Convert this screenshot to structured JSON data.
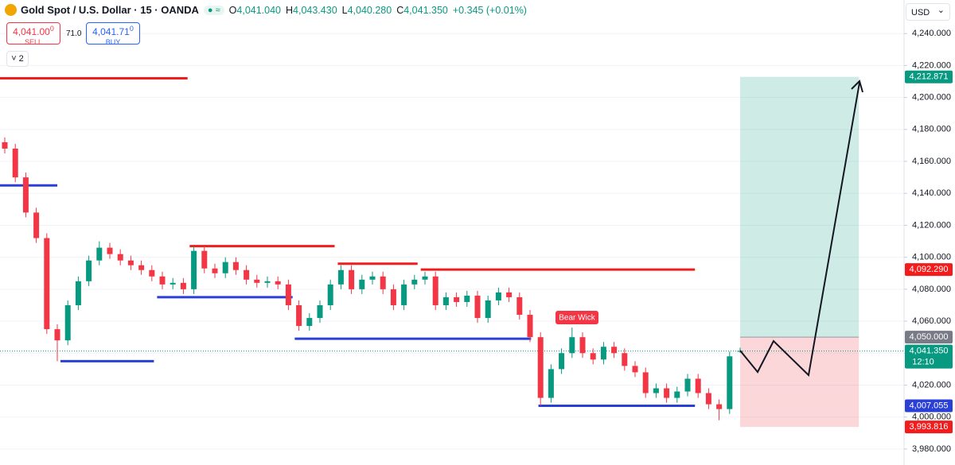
{
  "header": {
    "symbol": "Gold Spot / U.S. Dollar · 15 · OANDA",
    "ohlc": [
      {
        "label": "O",
        "value": "4,041.040"
      },
      {
        "label": "H",
        "value": "4,043.430"
      },
      {
        "label": "L",
        "value": "4,040.280"
      },
      {
        "label": "C",
        "value": "4,041.350"
      }
    ],
    "change": "+0.345 (+0.01%)",
    "sell": {
      "price": "4,041.00",
      "sup": "0",
      "label": "SELL"
    },
    "spread": "71.0",
    "buy": {
      "price": "4,041.71",
      "sup": "0",
      "label": "BUY"
    },
    "indicators": "2",
    "currency": "USD"
  },
  "chart_data": {
    "type": "candlestick",
    "up_color": "#089981",
    "down_color": "#f23645",
    "grid": true,
    "ylim": [
      3970,
      4261
    ],
    "yticks": [
      {
        "value": 4240,
        "label": "4,240.000"
      },
      {
        "value": 4220,
        "label": "4,220.000"
      },
      {
        "value": 4200,
        "label": "4,200.000"
      },
      {
        "value": 4180,
        "label": "4,180.000"
      },
      {
        "value": 4160,
        "label": "4,160.000"
      },
      {
        "value": 4140,
        "label": "4,140.000"
      },
      {
        "value": 4120,
        "label": "4,120.000"
      },
      {
        "value": 4100,
        "label": "4,100.000"
      },
      {
        "value": 4080,
        "label": "4,080.000"
      },
      {
        "value": 4060,
        "label": "4,060.000"
      },
      {
        "value": 4040,
        "label": "4,040.000"
      },
      {
        "value": 4020,
        "label": "4,020.000"
      },
      {
        "value": 4000,
        "label": "4,000.000"
      },
      {
        "value": 3980,
        "label": "3,980.000"
      }
    ],
    "open": [
      4172,
      4168,
      4150,
      4128,
      4112,
      4055,
      4048,
      4070,
      4085,
      4098,
      4106,
      4102,
      4098,
      4095,
      4092,
      4088,
      4083,
      4084,
      4080,
      4104,
      4093,
      4090,
      4097,
      4092,
      4086,
      4084,
      4085,
      4083,
      4070,
      4057,
      4062,
      4070,
      4083,
      4092,
      4080,
      4086,
      4088,
      4080,
      4070,
      4083,
      4086,
      4088,
      4070,
      4075,
      4072,
      4076,
      4062,
      4073,
      4078,
      4075,
      4064,
      4050,
      4012,
      4030,
      4040,
      4050,
      4040,
      4036,
      4044,
      4040,
      4032,
      4028,
      4015,
      4018,
      4012,
      4016,
      4024,
      4015,
      4008,
      4005,
      4041.04
    ],
    "high": [
      4175,
      4171,
      4153,
      4131,
      4115,
      4058,
      4073,
      4088,
      4101,
      4110,
      4109,
      4105,
      4101,
      4098,
      4095,
      4091,
      4087,
      4087,
      4107,
      4107,
      4096,
      4100,
      4100,
      4095,
      4089,
      4088,
      4088,
      4086,
      4073,
      4065,
      4073,
      4086,
      4095,
      4095,
      4089,
      4091,
      4091,
      4083,
      4086,
      4089,
      4091,
      4091,
      4078,
      4078,
      4079,
      4079,
      4076,
      4081,
      4081,
      4078,
      4067,
      4053,
      4033,
      4043,
      4056,
      4053,
      4043,
      4047,
      4047,
      4043,
      4035,
      4031,
      4021,
      4021,
      4019,
      4027,
      4027,
      4018,
      4011,
      4041,
      4043.43
    ],
    "low": [
      4165,
      4147,
      4125,
      4109,
      4052,
      4035,
      4045,
      4067,
      4082,
      4095,
      4099,
      4095,
      4092,
      4089,
      4085,
      4080,
      4080,
      4077,
      4077,
      4090,
      4087,
      4087,
      4089,
      4083,
      4081,
      4081,
      4080,
      4067,
      4054,
      4054,
      4059,
      4067,
      4080,
      4077,
      4077,
      4083,
      4077,
      4067,
      4067,
      4080,
      4083,
      4067,
      4067,
      4069,
      4069,
      4059,
      4059,
      4070,
      4072,
      4061,
      4047,
      4007,
      4009,
      4027,
      4037,
      4037,
      4033,
      4033,
      4037,
      4029,
      4025,
      4012,
      4012,
      4009,
      4009,
      4013,
      4012,
      4005,
      3998,
      4002,
      4040.28
    ],
    "close": [
      4168,
      4150,
      4128,
      4112,
      4055,
      4048,
      4070,
      4085,
      4098,
      4106,
      4102,
      4098,
      4095,
      4092,
      4088,
      4083,
      4084,
      4080,
      4104,
      4093,
      4090,
      4097,
      4092,
      4086,
      4084,
      4085,
      4083,
      4070,
      4057,
      4062,
      4070,
      4083,
      4092,
      4080,
      4086,
      4088,
      4080,
      4070,
      4083,
      4086,
      4088,
      4070,
      4075,
      4072,
      4076,
      4062,
      4073,
      4078,
      4075,
      4064,
      4050,
      4012,
      4030,
      4040,
      4050,
      4040,
      4036,
      4044,
      4040,
      4032,
      4028,
      4015,
      4018,
      4012,
      4016,
      4024,
      4015,
      4008,
      4005,
      4038,
      4041.35
    ],
    "levels": [
      {
        "price": 4212,
        "start": -0.5,
        "end": 17.4,
        "color": "#f21c1c"
      },
      {
        "price": 4145,
        "start": -0.5,
        "end": 5,
        "color": "#2a3fd6"
      },
      {
        "price": 4107,
        "start": 17.6,
        "end": 31.4,
        "color": "#f21c1c"
      },
      {
        "price": 4075,
        "start": 14.5,
        "end": 27.4,
        "color": "#2a3fd6"
      },
      {
        "price": 4096,
        "start": 31.7,
        "end": 39.3,
        "color": "#f21c1c"
      },
      {
        "price": 4092.29,
        "start": 39.6,
        "end": 65.7,
        "color": "#f21c1c"
      },
      {
        "price": 4049,
        "start": 27.6,
        "end": 50.1,
        "color": "#2a3fd6"
      },
      {
        "price": 4035,
        "start": 5.3,
        "end": 14.2,
        "color": "#2a3fd6"
      },
      {
        "price": 4007.055,
        "start": 50.8,
        "end": 65.7,
        "color": "#2a3fd6"
      }
    ],
    "position": {
      "entry": 4050,
      "target": 4212.871,
      "stop": 3993.816,
      "start": 70,
      "end": 81.3
    },
    "price_labels": [
      {
        "value": 4212.871,
        "label": "4,212.871",
        "color": "#089981"
      },
      {
        "value": 4092.29,
        "label": "4,092.290",
        "color": "#f21c1c"
      },
      {
        "value": 4050,
        "label": "4,050.000",
        "color": "#787b86"
      },
      {
        "value": 4041.35,
        "label": "4,041.350",
        "color": "#089981",
        "time": "12:10"
      },
      {
        "value": 4007.055,
        "label": "4,007.055",
        "color": "#2a3fd6"
      },
      {
        "value": 3993.816,
        "label": "3,993.816",
        "color": "#f21c1c"
      }
    ],
    "annotation": "Bear Wick"
  }
}
